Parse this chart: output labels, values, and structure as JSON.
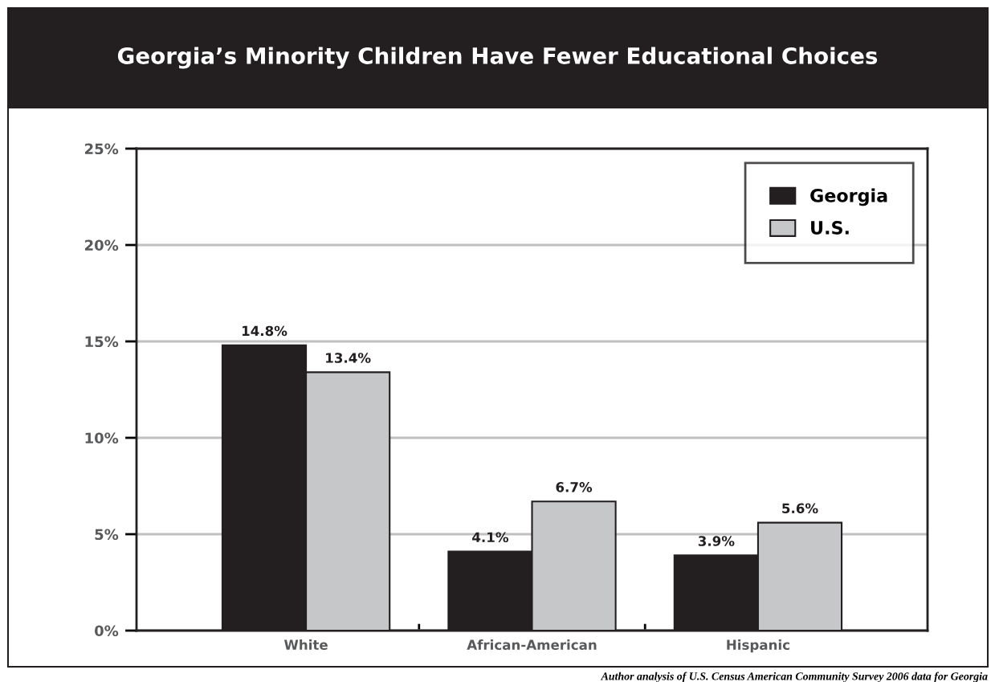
{
  "chart_data": {
    "type": "bar",
    "title": "Georgia’s Minority Children Have Fewer Educational Choices",
    "categories": [
      "White",
      "African-American",
      "Hispanic"
    ],
    "series": [
      {
        "name": "Georgia",
        "color": "#231f20",
        "values": [
          14.8,
          4.1,
          3.9
        ],
        "value_labels": [
          "14.8%",
          "4.1%",
          "3.9%"
        ]
      },
      {
        "name": "U.S.",
        "color": "#c6c7c9",
        "values": [
          13.4,
          6.7,
          5.6
        ],
        "value_labels": [
          "13.4%",
          "6.7%",
          "5.6%"
        ]
      }
    ],
    "ylim": [
      0,
      25
    ],
    "yticks": [
      {
        "value": 0,
        "label": "0%"
      },
      {
        "value": 5,
        "label": "5%"
      },
      {
        "value": 10,
        "label": "10%"
      },
      {
        "value": 15,
        "label": "15%"
      },
      {
        "value": 20,
        "label": "20%"
      },
      {
        "value": 25,
        "label": "25%"
      }
    ],
    "grid": "y",
    "legend": "top right",
    "annotations": [
      "Author analysis of U.S. Census American Community Survey 2006 data for Georgia"
    ]
  }
}
